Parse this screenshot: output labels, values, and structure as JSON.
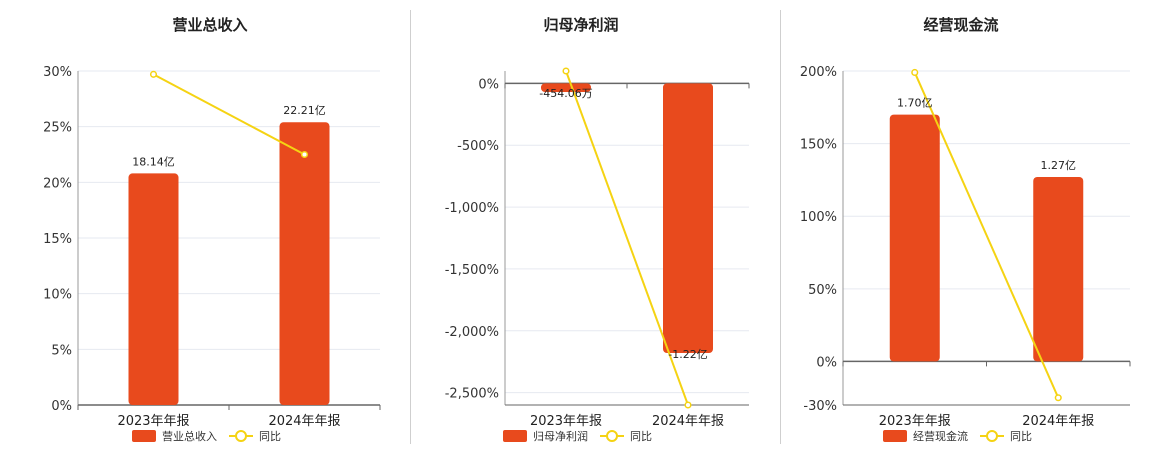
{
  "colors": {
    "bar": "#e84a1d",
    "line": "#f5d313",
    "grid": "#e6e9f0",
    "axis": "#666666"
  },
  "chart_data": [
    {
      "type": "bar",
      "title": "营业总收入",
      "categories": [
        "2023年年报",
        "2024年年报"
      ],
      "ylim": [
        0,
        30
      ],
      "yticks": [
        0,
        5,
        10,
        15,
        20,
        25,
        30
      ],
      "tick_labels": [
        "0%",
        "5%",
        "10%",
        "15%",
        "20%",
        "25%",
        "30%"
      ],
      "series": [
        {
          "name": "营业总收入",
          "type": "bar",
          "values": [
            20.8,
            25.4
          ],
          "labels": [
            "18.14亿",
            "22.21亿"
          ]
        },
        {
          "name": "同比",
          "type": "line",
          "values": [
            29.7,
            22.5
          ]
        }
      ],
      "legend": [
        "营业总收入",
        "同比"
      ]
    },
    {
      "type": "bar",
      "title": "归母净利润",
      "categories": [
        "2023年年报",
        "2024年年报"
      ],
      "ylim": [
        -2600,
        100
      ],
      "yticks": [
        0,
        -500,
        -1000,
        -1500,
        -2000,
        -2500
      ],
      "tick_labels": [
        "0%",
        "-500%",
        "-1,000%",
        "-1,500%",
        "-2,000%",
        "-2,500%"
      ],
      "series": [
        {
          "name": "归母净利润",
          "type": "bar",
          "values": [
            -70,
            -2180
          ],
          "labels": [
            "-454.06万",
            "-1.22亿"
          ]
        },
        {
          "name": "同比",
          "type": "line",
          "values": [
            100,
            -2600
          ]
        }
      ],
      "legend": [
        "归母净利润",
        "同比"
      ]
    },
    {
      "type": "bar",
      "title": "经营现金流",
      "categories": [
        "2023年年报",
        "2024年年报"
      ],
      "ylim": [
        -30,
        200
      ],
      "yticks": [
        -30,
        0,
        50,
        100,
        150,
        200
      ],
      "tick_labels": [
        "-30%",
        "0%",
        "50%",
        "100%",
        "150%",
        "200%"
      ],
      "series": [
        {
          "name": "经营现金流",
          "type": "bar",
          "values": [
            170,
            127
          ],
          "labels": [
            "1.70亿",
            "1.27亿"
          ]
        },
        {
          "name": "同比",
          "type": "line",
          "values": [
            199,
            -25
          ]
        }
      ],
      "legend": [
        "经营现金流",
        "同比"
      ]
    }
  ]
}
